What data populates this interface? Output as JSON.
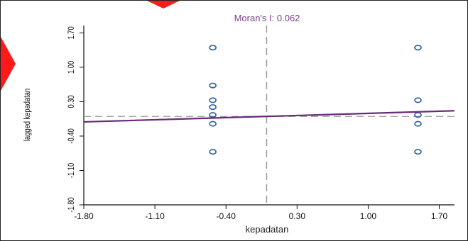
{
  "chart_data": {
    "type": "scatter",
    "title": "Moran's I: 0.062",
    "xlabel": "kepadatan",
    "ylabel": "lagged kepadatan",
    "xlim": [
      -1.8,
      1.85
    ],
    "ylim": [
      -1.8,
      1.85
    ],
    "x_ticks": [
      "-1.80",
      "-1.10",
      "-0.40",
      "0.30",
      "1.00",
      "1.70"
    ],
    "y_ticks": [
      "-1.80",
      "-1.10",
      "-0.40",
      "0.30",
      "1.00",
      "1.70"
    ],
    "points": [
      {
        "x": -0.53,
        "y": 1.4
      },
      {
        "x": -0.53,
        "y": 0.63
      },
      {
        "x": -0.53,
        "y": 0.33
      },
      {
        "x": -0.53,
        "y": 0.19
      },
      {
        "x": -0.53,
        "y": 0.03
      },
      {
        "x": -0.53,
        "y": -0.15
      },
      {
        "x": -0.53,
        "y": -0.72
      },
      {
        "x": 1.49,
        "y": 1.4
      },
      {
        "x": 1.49,
        "y": 0.33
      },
      {
        "x": 1.49,
        "y": 0.03
      },
      {
        "x": 1.49,
        "y": -0.15
      },
      {
        "x": 1.49,
        "y": -0.72
      }
    ],
    "regression": {
      "slope": 0.062,
      "intercept": 0.0
    },
    "vline_x": 0.0,
    "hline_y": 0.0,
    "colors": {
      "points": "#2e5f9e",
      "regression": "#6a2a7a",
      "title": "#7a3d8a",
      "reference_lines": "#999999",
      "axes": "#111111"
    }
  }
}
